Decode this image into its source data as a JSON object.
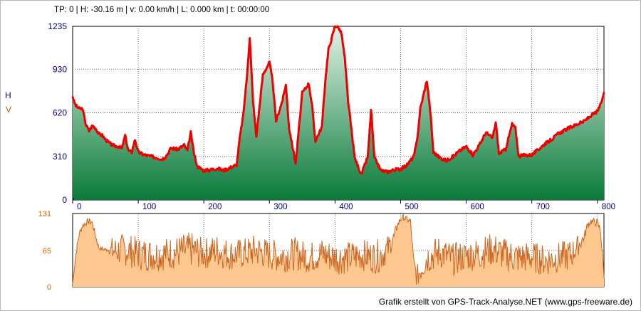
{
  "status_text": "TP: 0 | H: -30.16 m | v: 0.00 km/h | L: 0.000 km | t: 00:00:00",
  "credit": "Grafik erstellt von GPS-Track-Analyse.NET (www.gps-freeware.de)",
  "colors": {
    "elevation_line": "#ee0000",
    "elevation_fill_top": "#d8efe0",
    "elevation_fill_bottom": "#0a7a3a",
    "speed_fill": "#fcc890",
    "speed_line": "#cc6620",
    "axis_text": "#000080",
    "speed_axis_text": "#cc6600"
  },
  "chart_data": [
    {
      "type": "area",
      "ylabel": "H",
      "xlim": [
        0,
        810
      ],
      "ylim": [
        0,
        1235
      ],
      "yticks": [
        "0",
        "310",
        "620",
        "930",
        "1235"
      ],
      "xticks": [
        "0",
        "100",
        "200",
        "300",
        "400",
        "500",
        "600",
        "700",
        "800"
      ],
      "grid": true,
      "x": [
        0,
        2,
        5,
        10,
        15,
        20,
        25,
        30,
        35,
        40,
        45,
        50,
        55,
        60,
        70,
        75,
        80,
        85,
        90,
        95,
        100,
        110,
        120,
        130,
        135,
        140,
        145,
        150,
        160,
        170,
        175,
        180,
        185,
        190,
        200,
        210,
        220,
        230,
        240,
        250,
        255,
        260,
        265,
        270,
        275,
        280,
        290,
        300,
        305,
        310,
        320,
        325,
        330,
        340,
        350,
        360,
        365,
        370,
        380,
        385,
        390,
        395,
        400,
        405,
        410,
        415,
        420,
        430,
        440,
        450,
        455,
        460,
        470,
        480,
        490,
        500,
        510,
        520,
        525,
        530,
        540,
        545,
        550,
        560,
        570,
        580,
        590,
        600,
        610,
        620,
        630,
        640,
        645,
        650,
        660,
        670,
        675,
        680,
        690,
        700,
        710,
        720,
        730,
        740,
        760,
        780,
        790,
        800,
        805,
        810
      ],
      "y": [
        740,
        700,
        670,
        650,
        650,
        540,
        490,
        530,
        510,
        470,
        460,
        430,
        410,
        390,
        380,
        365,
        460,
        350,
        340,
        430,
        340,
        320,
        310,
        300,
        290,
        300,
        330,
        370,
        360,
        390,
        350,
        480,
        330,
        240,
        210,
        215,
        225,
        210,
        230,
        250,
        450,
        600,
        840,
        1150,
        700,
        450,
        890,
        980,
        840,
        560,
        710,
        820,
        510,
        260,
        760,
        830,
        670,
        420,
        520,
        840,
        1070,
        1150,
        1240,
        1230,
        1180,
        1000,
        700,
        300,
        180,
        310,
        640,
        300,
        210,
        200,
        215,
        220,
        250,
        310,
        420,
        650,
        850,
        640,
        340,
        300,
        280,
        310,
        350,
        380,
        320,
        390,
        480,
        440,
        550,
        330,
        360,
        540,
        510,
        310,
        320,
        320,
        360,
        400,
        430,
        470,
        520,
        560,
        600,
        630,
        680,
        760
      ]
    },
    {
      "type": "area",
      "ylabel": "V",
      "xlim": [
        0,
        810
      ],
      "ylim": [
        0,
        131
      ],
      "yticks": [
        "0",
        "65",
        "131"
      ],
      "grid": true,
      "seed": 7,
      "x": [
        0,
        5,
        10,
        15,
        20,
        25,
        30,
        35,
        40,
        45,
        50,
        55,
        60,
        80,
        100,
        120,
        140,
        160,
        180,
        200,
        220,
        240,
        260,
        280,
        300,
        320,
        340,
        360,
        380,
        400,
        420,
        440,
        460,
        470,
        480,
        490,
        495,
        500,
        505,
        510,
        515,
        520,
        525,
        540,
        560,
        580,
        600,
        620,
        640,
        660,
        680,
        700,
        720,
        740,
        760,
        780,
        785,
        790,
        800,
        805,
        810
      ],
      "y": [
        5,
        60,
        95,
        110,
        115,
        118,
        115,
        90,
        70,
        68,
        67,
        67,
        66,
        70,
        62,
        60,
        62,
        65,
        70,
        62,
        68,
        60,
        62,
        68,
        60,
        58,
        62,
        55,
        62,
        55,
        55,
        60,
        56,
        60,
        70,
        90,
        110,
        122,
        125,
        120,
        118,
        40,
        20,
        55,
        65,
        52,
        58,
        62,
        70,
        60,
        55,
        56,
        50,
        55,
        60,
        90,
        112,
        118,
        115,
        100,
        20
      ],
      "noise_amp": [
        0,
        8,
        6,
        6,
        6,
        6,
        6,
        5,
        4,
        4,
        4,
        4,
        26,
        30,
        30,
        30,
        30,
        30,
        32,
        28,
        30,
        28,
        28,
        30,
        28,
        30,
        30,
        28,
        30,
        30,
        30,
        28,
        30,
        30,
        25,
        12,
        8,
        6,
        6,
        6,
        6,
        20,
        20,
        30,
        30,
        30,
        28,
        30,
        30,
        30,
        30,
        28,
        28,
        28,
        28,
        10,
        8,
        6,
        8,
        10,
        5
      ]
    }
  ]
}
